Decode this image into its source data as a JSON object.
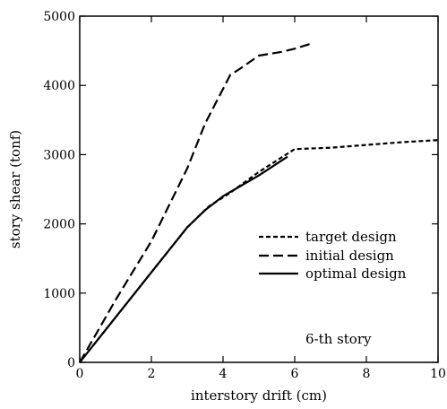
{
  "chart_data": {
    "type": "line",
    "title": "",
    "xlabel": "interstory drift (cm)",
    "ylabel": "story shear (tonf)",
    "xlim": [
      0,
      10
    ],
    "ylim": [
      0,
      5000
    ],
    "xticks": [
      "0",
      "2",
      "4",
      "6",
      "8",
      "10"
    ],
    "yticks": [
      "0",
      "1000",
      "2000",
      "3000",
      "4000",
      "5000"
    ],
    "grid": false,
    "legend_position": "right-middle",
    "annotation": "6-th story",
    "series": [
      {
        "name": "target design",
        "line_style": "short-dash",
        "x": [
          0,
          1,
          2,
          3,
          3.6,
          4.2,
          5,
          6,
          7,
          8,
          9,
          10
        ],
        "y": [
          0,
          650,
          1300,
          1950,
          2250,
          2450,
          2750,
          3080,
          3100,
          3140,
          3180,
          3210
        ]
      },
      {
        "name": "initial design",
        "line_style": "long-dash",
        "x": [
          0,
          0.5,
          1,
          2,
          3,
          3.5,
          4,
          4.2,
          4.5,
          5,
          5.6,
          6,
          6.5
        ],
        "y": [
          0,
          450,
          900,
          1750,
          2800,
          3450,
          3950,
          4150,
          4250,
          4430,
          4480,
          4530,
          4610
        ]
      },
      {
        "name": "optimal design",
        "line_style": "solid",
        "x": [
          0,
          1,
          2,
          3,
          3.5,
          4,
          5,
          5.8
        ],
        "y": [
          0,
          650,
          1300,
          1950,
          2200,
          2400,
          2700,
          2970
        ]
      }
    ]
  }
}
